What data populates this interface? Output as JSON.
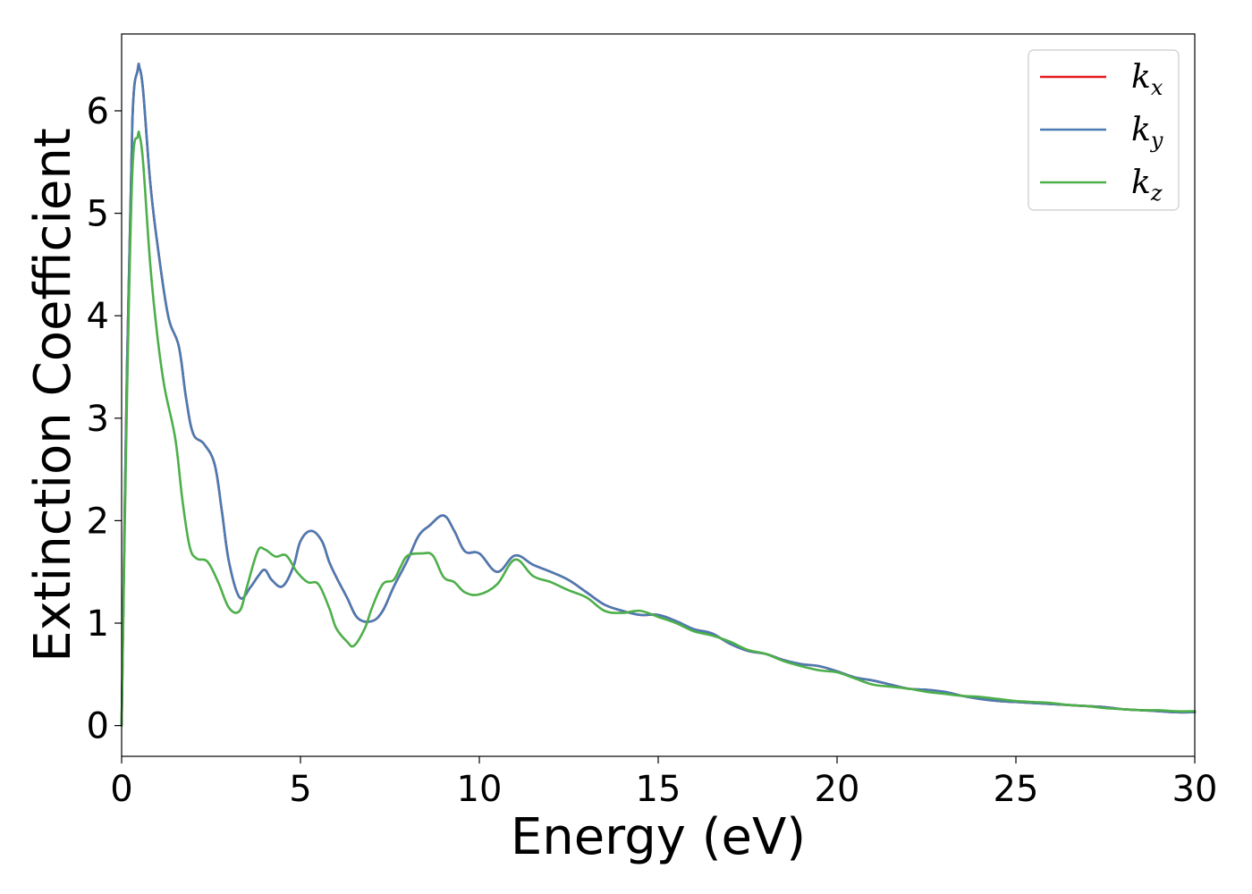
{
  "chart_data": {
    "type": "line",
    "title": "",
    "xlabel": "Energy (eV)",
    "ylabel": "Extinction Coefficient",
    "xlim": [
      0,
      30
    ],
    "ylim": [
      -0.3,
      6.75
    ],
    "xticks": [
      0,
      5,
      10,
      15,
      20,
      25,
      30
    ],
    "yticks": [
      0,
      1,
      2,
      3,
      4,
      5,
      6
    ],
    "grid": false,
    "legend_position": "top-right",
    "series": [
      {
        "name": "k",
        "subscript": "x",
        "color": "#e41a1c",
        "x": [
          0,
          0.15,
          0.3,
          0.45,
          0.5,
          0.6,
          0.8,
          1.0,
          1.3,
          1.6,
          1.8,
          2.0,
          2.3,
          2.6,
          2.8,
          3.0,
          3.3,
          3.6,
          3.8,
          4.0,
          4.2,
          4.5,
          4.8,
          5.0,
          5.3,
          5.6,
          5.8,
          6.0,
          6.3,
          6.6,
          7.0,
          7.3,
          7.6,
          8.0,
          8.3,
          8.6,
          9.0,
          9.3,
          9.6,
          10.0,
          10.5,
          11.0,
          11.5,
          12.0,
          12.5,
          13.0,
          13.5,
          14.0,
          14.5,
          15.0,
          15.5,
          16.0,
          16.5,
          17.0,
          17.5,
          18.0,
          18.5,
          19.0,
          19.5,
          20.0,
          20.5,
          21.0,
          21.5,
          22.0,
          22.5,
          23.0,
          23.5,
          24.0,
          24.5,
          25.0,
          25.5,
          26.0,
          26.5,
          27.0,
          27.5,
          28.0,
          28.5,
          29.0,
          29.5,
          30.0
        ],
        "y": [
          0,
          3.5,
          5.9,
          6.4,
          6.42,
          6.2,
          5.3,
          4.7,
          4.0,
          3.7,
          3.2,
          2.85,
          2.75,
          2.55,
          2.1,
          1.6,
          1.25,
          1.35,
          1.45,
          1.52,
          1.42,
          1.36,
          1.55,
          1.8,
          1.9,
          1.8,
          1.6,
          1.45,
          1.25,
          1.05,
          1.02,
          1.12,
          1.35,
          1.62,
          1.85,
          1.95,
          2.05,
          1.9,
          1.7,
          1.68,
          1.5,
          1.66,
          1.57,
          1.5,
          1.42,
          1.3,
          1.18,
          1.12,
          1.08,
          1.08,
          1.02,
          0.94,
          0.9,
          0.8,
          0.73,
          0.7,
          0.64,
          0.6,
          0.58,
          0.53,
          0.47,
          0.44,
          0.4,
          0.36,
          0.35,
          0.33,
          0.29,
          0.26,
          0.24,
          0.23,
          0.22,
          0.21,
          0.2,
          0.19,
          0.18,
          0.16,
          0.15,
          0.14,
          0.13,
          0.13
        ]
      },
      {
        "name": "k",
        "subscript": "y",
        "color": "#4a7bb3",
        "x": [
          0,
          0.15,
          0.3,
          0.45,
          0.5,
          0.6,
          0.8,
          1.0,
          1.3,
          1.6,
          1.8,
          2.0,
          2.3,
          2.6,
          2.8,
          3.0,
          3.3,
          3.6,
          3.8,
          4.0,
          4.2,
          4.5,
          4.8,
          5.0,
          5.3,
          5.6,
          5.8,
          6.0,
          6.3,
          6.6,
          7.0,
          7.3,
          7.6,
          8.0,
          8.3,
          8.6,
          9.0,
          9.3,
          9.6,
          10.0,
          10.5,
          11.0,
          11.5,
          12.0,
          12.5,
          13.0,
          13.5,
          14.0,
          14.5,
          15.0,
          15.5,
          16.0,
          16.5,
          17.0,
          17.5,
          18.0,
          18.5,
          19.0,
          19.5,
          20.0,
          20.5,
          21.0,
          21.5,
          22.0,
          22.5,
          23.0,
          23.5,
          24.0,
          24.5,
          25.0,
          25.5,
          26.0,
          26.5,
          27.0,
          27.5,
          28.0,
          28.5,
          29.0,
          29.5,
          30.0
        ],
        "y": [
          0,
          3.5,
          5.9,
          6.4,
          6.42,
          6.2,
          5.3,
          4.7,
          4.0,
          3.7,
          3.2,
          2.85,
          2.75,
          2.55,
          2.1,
          1.6,
          1.25,
          1.35,
          1.45,
          1.52,
          1.42,
          1.36,
          1.55,
          1.8,
          1.9,
          1.8,
          1.6,
          1.45,
          1.25,
          1.05,
          1.02,
          1.12,
          1.35,
          1.62,
          1.85,
          1.95,
          2.05,
          1.9,
          1.7,
          1.68,
          1.5,
          1.66,
          1.57,
          1.5,
          1.42,
          1.3,
          1.18,
          1.12,
          1.08,
          1.08,
          1.02,
          0.94,
          0.9,
          0.8,
          0.73,
          0.7,
          0.64,
          0.6,
          0.58,
          0.53,
          0.47,
          0.44,
          0.4,
          0.36,
          0.35,
          0.33,
          0.29,
          0.26,
          0.24,
          0.23,
          0.22,
          0.21,
          0.2,
          0.19,
          0.18,
          0.16,
          0.15,
          0.14,
          0.13,
          0.13
        ]
      },
      {
        "name": "k",
        "subscript": "z",
        "color": "#4daf4a",
        "x": [
          0,
          0.15,
          0.3,
          0.45,
          0.5,
          0.6,
          0.8,
          1.0,
          1.2,
          1.5,
          1.7,
          1.9,
          2.1,
          2.4,
          2.7,
          3.0,
          3.3,
          3.5,
          3.8,
          4.0,
          4.3,
          4.6,
          4.9,
          5.2,
          5.5,
          5.8,
          6.0,
          6.3,
          6.5,
          6.8,
          7.0,
          7.3,
          7.6,
          7.8,
          8.0,
          8.4,
          8.7,
          9.0,
          9.3,
          9.6,
          10.0,
          10.5,
          11.0,
          11.5,
          12.0,
          12.5,
          13.0,
          13.5,
          14.0,
          14.5,
          15.0,
          15.5,
          16.0,
          16.5,
          17.0,
          17.5,
          18.0,
          18.5,
          19.0,
          19.5,
          20.0,
          20.5,
          21.0,
          21.5,
          22.0,
          22.5,
          23.0,
          23.5,
          24.0,
          24.5,
          25.0,
          25.5,
          26.0,
          26.5,
          27.0,
          27.5,
          28.0,
          28.5,
          29.0,
          29.5,
          30.0
        ],
        "y": [
          0,
          3.2,
          5.4,
          5.75,
          5.76,
          5.5,
          4.5,
          3.8,
          3.3,
          2.8,
          2.2,
          1.75,
          1.63,
          1.6,
          1.4,
          1.15,
          1.12,
          1.35,
          1.7,
          1.72,
          1.65,
          1.66,
          1.5,
          1.4,
          1.38,
          1.15,
          0.95,
          0.82,
          0.78,
          0.95,
          1.15,
          1.38,
          1.42,
          1.55,
          1.66,
          1.68,
          1.66,
          1.45,
          1.4,
          1.3,
          1.28,
          1.38,
          1.62,
          1.46,
          1.4,
          1.32,
          1.25,
          1.12,
          1.1,
          1.12,
          1.06,
          1.0,
          0.92,
          0.88,
          0.82,
          0.74,
          0.7,
          0.63,
          0.58,
          0.54,
          0.52,
          0.46,
          0.4,
          0.38,
          0.36,
          0.33,
          0.31,
          0.29,
          0.28,
          0.26,
          0.24,
          0.23,
          0.22,
          0.2,
          0.19,
          0.17,
          0.16,
          0.15,
          0.15,
          0.14,
          0.14
        ]
      }
    ]
  }
}
